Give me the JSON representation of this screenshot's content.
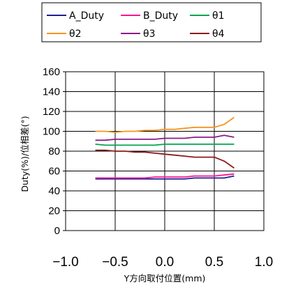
{
  "chart_data": {
    "type": "line",
    "title": "",
    "xlabel": "Y方向取付位置(mm)",
    "ylabel": "Duty(%)/位相差(°)",
    "xlim": [
      -1.0,
      1.0
    ],
    "ylim": [
      0,
      160
    ],
    "x_ticks": [
      "−1.0",
      "−0.5",
      "0.0",
      "0.5",
      "1.0"
    ],
    "y_ticks": [
      "0",
      "20",
      "40",
      "60",
      "80",
      "100",
      "120",
      "140",
      "160"
    ],
    "grid": true,
    "legend_position": "top",
    "x": [
      -0.7,
      -0.6,
      -0.5,
      -0.4,
      -0.3,
      -0.2,
      -0.1,
      0.0,
      0.1,
      0.2,
      0.3,
      0.4,
      0.5,
      0.6,
      0.7
    ],
    "series": [
      {
        "name": "A_Duty",
        "color": "#1f1f8f",
        "values": [
          52,
          52,
          52,
          52,
          52,
          52,
          52,
          52,
          52,
          52,
          53,
          53,
          53,
          53,
          55
        ]
      },
      {
        "name": "B_Duty",
        "color": "#ff1493",
        "values": [
          53,
          53,
          53,
          53,
          53,
          53,
          54,
          54,
          54,
          54,
          55,
          55,
          55,
          56,
          57
        ]
      },
      {
        "name": "θ1",
        "color": "#00a550",
        "values": [
          87,
          86,
          86,
          86,
          86,
          86,
          86,
          87,
          87,
          87,
          87,
          87,
          87,
          87,
          87
        ]
      },
      {
        "name": "θ2",
        "color": "#f7941d",
        "values": [
          100,
          100,
          99,
          100,
          100,
          101,
          101,
          102,
          102,
          103,
          104,
          104,
          104,
          107,
          114
        ]
      },
      {
        "name": "θ3",
        "color": "#8b1a8b",
        "values": [
          91,
          91,
          92,
          92,
          92,
          92,
          92,
          93,
          93,
          93,
          94,
          94,
          94,
          96,
          94
        ]
      },
      {
        "name": "θ4",
        "color": "#8b1a1a",
        "values": [
          81,
          81,
          80,
          80,
          79,
          79,
          78,
          77,
          76,
          75,
          74,
          74,
          74,
          70,
          63
        ]
      }
    ]
  }
}
